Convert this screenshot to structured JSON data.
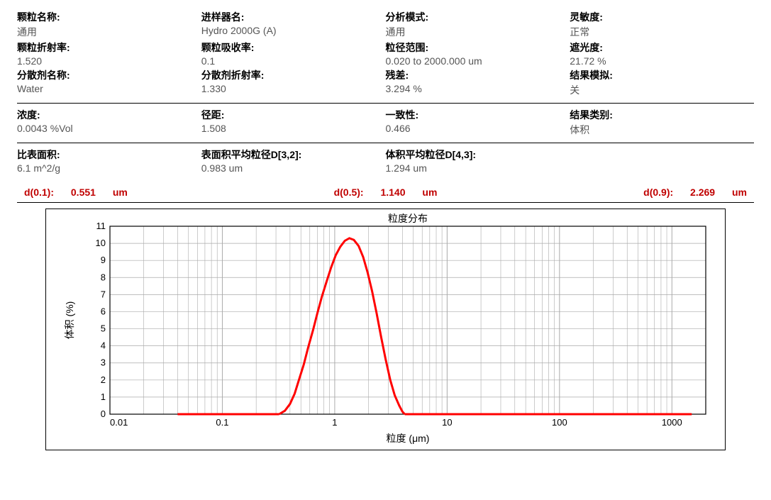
{
  "section1": {
    "r1": {
      "c1": {
        "label": "颗粒名称:",
        "value": "通用"
      },
      "c2": {
        "label": "进样器名:",
        "value": "Hydro 2000G (A)"
      },
      "c3": {
        "label": "分析模式:",
        "value": "通用"
      },
      "c4": {
        "label": "灵敏度:",
        "value": "正常"
      }
    },
    "r2": {
      "c1": {
        "label": "颗粒折射率:",
        "value": "1.520"
      },
      "c2": {
        "label": "颗粒吸收率:",
        "value": "0.1"
      },
      "c3": {
        "label": "粒径范围:",
        "value": "0.020    to    2000.000   um"
      },
      "c4": {
        "label": "遮光度:",
        "value": "21.72     %"
      }
    },
    "r3": {
      "c1": {
        "label": "分散剂名称:",
        "value": "Water"
      },
      "c2": {
        "label": "分散剂折射率:",
        "value": "1.330"
      },
      "c3": {
        "label": "残差:",
        "value": "3.294          %"
      },
      "c4": {
        "label": "结果模拟:",
        "value": "关"
      }
    }
  },
  "section2": {
    "r1": {
      "c1": {
        "label": "浓度:",
        "value": "0.0043       %Vol"
      },
      "c2": {
        "label": "径距:",
        "value": "1.508"
      },
      "c3": {
        "label": "一致性:",
        "value": "0.466"
      },
      "c4": {
        "label": "结果类别:",
        "value": "体积"
      }
    }
  },
  "section3": {
    "r1": {
      "c1": {
        "label": "比表面积:",
        "value": "6.1           m^2/g"
      },
      "c2": {
        "label": "表面积平均粒径D[3,2]:",
        "value": "0.983        um"
      },
      "c3": {
        "label": "体积平均粒径D[4,3]:",
        "value": "1.294        um"
      },
      "c4": {
        "label": "",
        "value": ""
      }
    }
  },
  "dline": {
    "d1": {
      "label": "d(0.1):",
      "value": "0.551",
      "unit": "um"
    },
    "d2": {
      "label": "d(0.5):",
      "value": "1.140",
      "unit": "um"
    },
    "d3": {
      "label": "d(0.9):",
      "value": "2.269",
      "unit": "um"
    }
  },
  "chart": {
    "title": "粒度分布",
    "xlabel": "粒度 (μm)",
    "ylabel": "体积 (%)",
    "type": "line",
    "x_scale": "log",
    "xlim": [
      0.01,
      2000
    ],
    "ylim": [
      0,
      11
    ],
    "ytick_step": 1,
    "x_ticks": [
      0.01,
      0.1,
      1,
      10,
      100,
      1000
    ],
    "x_tick_labels": [
      "0.01",
      "0.1",
      "1",
      "10",
      "100",
      "1000"
    ],
    "line_color": "#ff0000",
    "line_width": 3,
    "grid_color": "#aaaaaa",
    "border_color": "#000000",
    "background_color": "#ffffff",
    "axis_fontsize": 14,
    "tick_fontsize": 13,
    "baseline_segments": [
      [
        0.04,
        0.32
      ],
      [
        4.2,
        1500
      ]
    ],
    "data": [
      [
        0.32,
        0.0
      ],
      [
        0.36,
        0.2
      ],
      [
        0.4,
        0.6
      ],
      [
        0.44,
        1.2
      ],
      [
        0.48,
        2.0
      ],
      [
        0.53,
        2.9
      ],
      [
        0.58,
        3.9
      ],
      [
        0.64,
        4.9
      ],
      [
        0.7,
        5.9
      ],
      [
        0.77,
        6.9
      ],
      [
        0.85,
        7.8
      ],
      [
        0.93,
        8.6
      ],
      [
        1.02,
        9.3
      ],
      [
        1.12,
        9.8
      ],
      [
        1.23,
        10.15
      ],
      [
        1.35,
        10.3
      ],
      [
        1.48,
        10.2
      ],
      [
        1.63,
        9.85
      ],
      [
        1.79,
        9.2
      ],
      [
        1.96,
        8.3
      ],
      [
        2.15,
        7.2
      ],
      [
        2.36,
        5.9
      ],
      [
        2.59,
        4.5
      ],
      [
        2.84,
        3.2
      ],
      [
        3.12,
        2.0
      ],
      [
        3.42,
        1.1
      ],
      [
        3.75,
        0.5
      ],
      [
        4.0,
        0.15
      ],
      [
        4.2,
        0.0
      ]
    ]
  }
}
